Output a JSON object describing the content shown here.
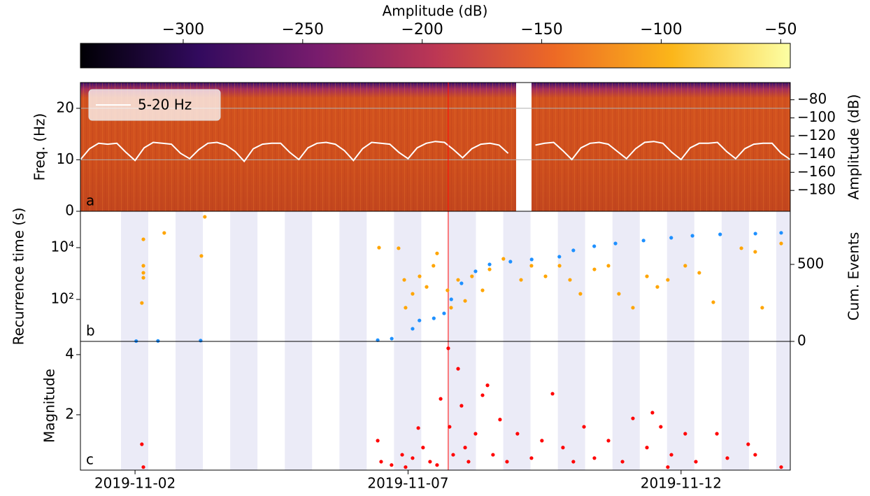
{
  "colorbar": {
    "label": "Amplitude (dB)",
    "lim": [
      -343,
      -46
    ],
    "ticks": [
      {
        "value": -300,
        "label": "−300"
      },
      {
        "value": -250,
        "label": "−250"
      },
      {
        "value": -200,
        "label": "−200"
      },
      {
        "value": -150,
        "label": "−150"
      },
      {
        "value": -100,
        "label": "−100"
      },
      {
        "value": -50,
        "label": "−50"
      }
    ],
    "colormap": [
      "#000004",
      "#320a5e",
      "#781c6d",
      "#bc3754",
      "#ed6925",
      "#fbb61a",
      "#fcffa4"
    ]
  },
  "chart_data": [
    {
      "type": "line",
      "panel_label": "a",
      "ylabel": "Freq. (Hz)",
      "ylim": [
        0,
        25
      ],
      "yticks": [
        0,
        10,
        20
      ],
      "grid": true,
      "y2label": "Amplitude (dB)",
      "y2lim": [
        -203,
        -61
      ],
      "y2ticks": [
        {
          "value": -80,
          "label": "−80"
        },
        {
          "value": -100,
          "label": "−100"
        },
        {
          "value": -120,
          "label": "−120"
        },
        {
          "value": -140,
          "label": "−140"
        },
        {
          "value": -160,
          "label": "−160"
        },
        {
          "value": -180,
          "label": "−180"
        }
      ],
      "xlim": [
        "2019-11-01",
        "2019-11-14"
      ],
      "legend": "upper left",
      "event_time": "2019-11-07 17:40",
      "event_color": "#ff0000",
      "series": [
        {
          "name": "5-20 Hz",
          "color": "#ffffff",
          "axis": "y2",
          "x": [
            "2019-11-01 00:00",
            "2019-11-01 04:00",
            "2019-11-01 08:00",
            "2019-11-01 12:00",
            "2019-11-01 16:00",
            "2019-11-01 20:00",
            "2019-11-02 00:00",
            "2019-11-02 04:00",
            "2019-11-02 08:00",
            "2019-11-02 12:00",
            "2019-11-02 16:00",
            "2019-11-02 20:00",
            "2019-11-03 00:00",
            "2019-11-03 04:00",
            "2019-11-03 08:00",
            "2019-11-03 12:00",
            "2019-11-03 16:00",
            "2019-11-03 20:00",
            "2019-11-04 00:00",
            "2019-11-04 04:00",
            "2019-11-04 08:00",
            "2019-11-04 12:00",
            "2019-11-04 16:00",
            "2019-11-04 20:00",
            "2019-11-05 00:00",
            "2019-11-05 04:00",
            "2019-11-05 08:00",
            "2019-11-05 12:00",
            "2019-11-05 16:00",
            "2019-11-05 20:00",
            "2019-11-06 00:00",
            "2019-11-06 04:00",
            "2019-11-06 08:00",
            "2019-11-06 12:00",
            "2019-11-06 16:00",
            "2019-11-06 20:00",
            "2019-11-07 00:00",
            "2019-11-07 04:00",
            "2019-11-07 08:00",
            "2019-11-07 12:00",
            "2019-11-07 16:00",
            "2019-11-07 20:00",
            "2019-11-08 00:00",
            "2019-11-08 04:00",
            "2019-11-08 08:00",
            "2019-11-08 12:00",
            "2019-11-08 16:00",
            "2019-11-08 20:00",
            "2019-11-09 00:00",
            "2019-11-09 04:00",
            "2019-11-09 08:00",
            "2019-11-09 12:00",
            "2019-11-09 16:00",
            "2019-11-09 20:00",
            "2019-11-10 00:00",
            "2019-11-10 04:00",
            "2019-11-10 08:00",
            "2019-11-10 12:00",
            "2019-11-10 16:00",
            "2019-11-10 20:00",
            "2019-11-11 00:00",
            "2019-11-11 04:00",
            "2019-11-11 08:00",
            "2019-11-11 12:00",
            "2019-11-11 16:00",
            "2019-11-11 20:00",
            "2019-11-12 00:00",
            "2019-11-12 04:00",
            "2019-11-12 08:00",
            "2019-11-12 12:00",
            "2019-11-12 16:00",
            "2019-11-12 20:00",
            "2019-11-13 00:00",
            "2019-11-13 04:00",
            "2019-11-13 08:00",
            "2019-11-13 12:00",
            "2019-11-13 16:00",
            "2019-11-13 20:00",
            "2019-11-14 00:00"
          ],
          "values": [
            -146,
            -134,
            -128,
            -129,
            -128,
            -138,
            -147,
            -133,
            -127,
            -128,
            -129,
            -139,
            -145,
            -135,
            -128,
            -127,
            -130,
            -137,
            -148,
            -134,
            -129,
            -128,
            -128,
            -138,
            -146,
            -133,
            -128,
            -127,
            -129,
            -136,
            -147,
            -134,
            -127,
            -128,
            -129,
            -138,
            -145,
            -133,
            -128,
            -126,
            -127,
            -135,
            -144,
            -134,
            -129,
            -128,
            -130,
            -139,
            null,
            null,
            -130,
            -128,
            -127,
            -136,
            -146,
            -133,
            -128,
            -127,
            -129,
            -137,
            -145,
            -134,
            -127,
            -126,
            -128,
            -138,
            -146,
            -133,
            -128,
            -128,
            -127,
            -137,
            -145,
            -134,
            -129,
            -128,
            -128,
            -139,
            -146
          ]
        }
      ]
    },
    {
      "type": "scatter",
      "panel_label": "b",
      "ylabel": "Recurrence time (s)",
      "ylog": true,
      "ylim": [
        2.4,
        254000
      ],
      "yticks": [
        {
          "value": 100,
          "label": "10²"
        },
        {
          "value": 10000,
          "label": "10⁴"
        }
      ],
      "y2label": "Cum. Events",
      "y2lim": [
        0,
        845
      ],
      "y2ticks": [
        0,
        500
      ],
      "xlim": [
        "2019-11-01",
        "2019-11-14"
      ],
      "series": [
        {
          "color": "#ffa500",
          "x": [
            "2019-11-02 03:40",
            "2019-11-02 03:40",
            "2019-11-02 03:40",
            "2019-11-02 03:40",
            "2019-11-02 03:00",
            "2019-11-02 12:50",
            "2019-11-03 05:10",
            "2019-11-03 06:40",
            "2019-11-06 11:15",
            "2019-11-06 19:50",
            "2019-11-06 22:20",
            "2019-11-06 22:55",
            "2019-11-07 02:00",
            "2019-11-07 05:05",
            "2019-11-07 08:10",
            "2019-11-07 11:10",
            "2019-11-07 12:45",
            "2019-11-07 17:20",
            "2019-11-07 18:55",
            "2019-11-07 22:00",
            "2019-11-08 01:05",
            "2019-11-08 04:05",
            "2019-11-08 08:45",
            "2019-11-08 11:50",
            "2019-11-08 17:55",
            "2019-11-09 01:40",
            "2019-11-09 06:15",
            "2019-11-09 12:25",
            "2019-11-09 18:35",
            "2019-11-09 23:10",
            "2019-11-10 03:45",
            "2019-11-10 09:55",
            "2019-11-10 16:05",
            "2019-11-10 20:40",
            "2019-11-11 02:50",
            "2019-11-11 09:00",
            "2019-11-11 13:35",
            "2019-11-11 18:10",
            "2019-11-12 01:50",
            "2019-11-12 08:00",
            "2019-11-12 14:10",
            "2019-11-13 02:30",
            "2019-11-13 08:35",
            "2019-11-13 11:40",
            "2019-11-13 20:00"
          ],
          "values": [
            21000,
            2000,
            1070,
            690,
            73,
            37000,
            4800,
            155000,
            10000,
            9500,
            570,
            48,
            165,
            780,
            305,
            2000,
            6000,
            225,
            48,
            570,
            88,
            780,
            225,
            1450,
            3700,
            570,
            2000,
            780,
            2000,
            570,
            165,
            1450,
            2000,
            165,
            48,
            780,
            305,
            570,
            2000,
            1070,
            78,
            9500,
            6900,
            48,
            14500
          ]
        },
        {
          "color": "#1e90ff",
          "axis": "y2",
          "x": [
            "2019-11-02 00:30",
            "2019-11-02 10:05",
            "2019-11-03 04:50",
            "2019-11-06 10:40",
            "2019-11-06 16:50",
            "2019-11-07 02:00",
            "2019-11-07 05:00",
            "2019-11-07 11:20",
            "2019-11-07 15:50",
            "2019-11-07 19:00",
            "2019-11-07 23:30",
            "2019-11-08 05:40",
            "2019-11-08 11:50",
            "2019-11-08 21:00",
            "2019-11-09 06:20",
            "2019-11-09 18:30",
            "2019-11-10 00:40",
            "2019-11-10 09:50",
            "2019-11-10 19:10",
            "2019-11-11 07:30",
            "2019-11-11 19:40",
            "2019-11-12 05:00",
            "2019-11-12 17:10",
            "2019-11-13 08:40",
            "2019-11-13 20:00"
          ],
          "values": [
            2,
            3,
            5,
            8,
            18,
            82,
            136,
            150,
            182,
            273,
            377,
            455,
            500,
            518,
            532,
            550,
            591,
            618,
            636,
            655,
            673,
            686,
            695,
            700,
            705
          ]
        }
      ]
    },
    {
      "type": "scatter",
      "panel_label": "c",
      "ylabel": "Magnitude",
      "ylim": [
        0.16,
        4.44
      ],
      "yticks": [
        2,
        4
      ],
      "xlim": [
        "2019-11-01",
        "2019-11-14"
      ],
      "xticks": [
        "2019-11-02",
        "2019-11-07",
        "2019-11-12"
      ],
      "series": [
        {
          "color": "#ff0000",
          "x": [
            "2019-11-02 03:00",
            "2019-11-02 03:40",
            "2019-11-06 10:40",
            "2019-11-06 12:10",
            "2019-11-06 16:45",
            "2019-11-06 21:25",
            "2019-11-06 22:55",
            "2019-11-07 02:00",
            "2019-11-07 04:30",
            "2019-11-07 06:35",
            "2019-11-07 09:40",
            "2019-11-07 12:45",
            "2019-11-07 14:20",
            "2019-11-07 17:40",
            "2019-11-07 18:15",
            "2019-11-07 19:50",
            "2019-11-07 22:00",
            "2019-11-07 23:30",
            "2019-11-08 01:05",
            "2019-11-08 02:35",
            "2019-11-08 05:40",
            "2019-11-08 08:45",
            "2019-11-08 10:55",
            "2019-11-08 13:20",
            "2019-11-08 16:25",
            "2019-11-08 19:30",
            "2019-11-09 00:05",
            "2019-11-09 06:15",
            "2019-11-09 10:50",
            "2019-11-09 15:30",
            "2019-11-09 20:05",
            "2019-11-10 00:40",
            "2019-11-10 05:20",
            "2019-11-10 09:55",
            "2019-11-10 16:05",
            "2019-11-10 22:15",
            "2019-11-11 02:50",
            "2019-11-11 09:00",
            "2019-11-11 11:25",
            "2019-11-11 15:05",
            "2019-11-11 18:10",
            "2019-11-11 19:45",
            "2019-11-12 01:50",
            "2019-11-12 06:30",
            "2019-11-12 15:45",
            "2019-11-12 20:20",
            "2019-11-13 05:30",
            "2019-11-13 08:35",
            "2019-11-13 20:00"
          ],
          "values": [
            1.02,
            0.26,
            1.14,
            0.44,
            0.33,
            0.67,
            0.26,
            0.56,
            1.56,
            0.91,
            0.44,
            0.33,
            2.53,
            4.21,
            1.6,
            0.67,
            3.53,
            2.3,
            0.91,
            0.44,
            1.37,
            2.65,
            2.98,
            0.67,
            1.84,
            0.44,
            1.37,
            0.56,
            1.14,
            2.7,
            0.91,
            0.44,
            1.6,
            0.56,
            1.14,
            0.44,
            1.88,
            0.91,
            2.07,
            1.6,
            0.26,
            0.67,
            1.37,
            0.44,
            1.37,
            0.56,
            1.02,
            0.67,
            0.26
          ]
        }
      ]
    }
  ]
}
